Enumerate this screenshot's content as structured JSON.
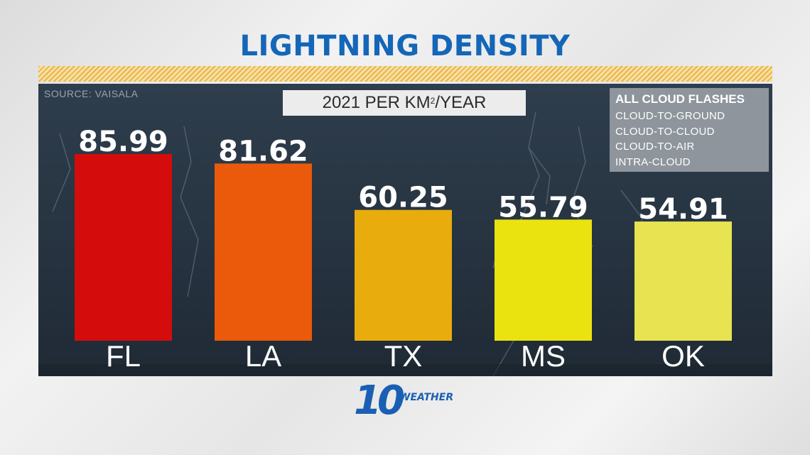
{
  "header": {
    "title": "LIGHTNING DENSITY"
  },
  "source": "SOURCE: VAISALA",
  "subtitle": {
    "main": "2021 PER KM",
    "sup": "2",
    "tail": "/YEAR"
  },
  "legend": {
    "heading": "ALL CLOUD FLASHES",
    "items": [
      "CLOUD-TO-GROUND",
      "CLOUD-TO-CLOUD",
      "CLOUD-TO-AIR",
      "INTRA-CLOUD"
    ]
  },
  "logo": {
    "number": "10",
    "word": "WEATHER"
  },
  "chart_data": {
    "type": "bar",
    "title": "LIGHTNING DENSITY",
    "subtitle": "2021 PER KM2/YEAR",
    "categories": [
      "FL",
      "LA",
      "TX",
      "MS",
      "OK"
    ],
    "values": [
      85.99,
      81.62,
      60.25,
      55.79,
      54.91
    ],
    "value_labels": [
      "85.99",
      "81.62",
      "60.25",
      "55.79",
      "54.91"
    ],
    "colors": [
      "#d40c0c",
      "#ea5a0a",
      "#e8ac0c",
      "#ebe310",
      "#e8e350"
    ],
    "xlabel": "",
    "ylabel": "",
    "ylim": [
      0,
      100
    ],
    "grid": false,
    "legend": "top-right"
  }
}
